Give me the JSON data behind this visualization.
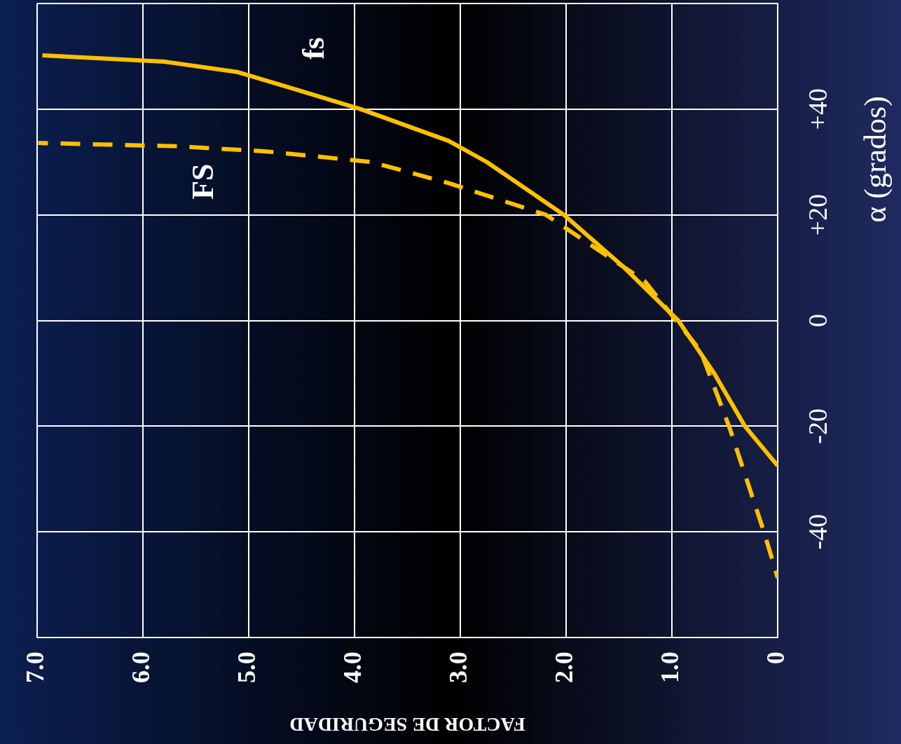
{
  "chart_data": {
    "type": "line",
    "xlabel": "FACTOR DE SEGURIDAD",
    "ylabel": "α (grados)",
    "xlim": [
      7,
      0
    ],
    "xticks": [
      0,
      {
        "value": 1,
        "label": "1.0"
      },
      {
        "value": 2,
        "label": "2.0"
      },
      {
        "value": 3,
        "label": "3.0"
      },
      {
        "value": 4,
        "label": "4.0"
      },
      {
        "value": 5,
        "label": "5.0"
      },
      {
        "value": 6,
        "label": "6.0"
      },
      {
        "value": 7,
        "label": "7.0"
      }
    ],
    "ylim": [
      -60,
      60
    ],
    "yticks": [
      {
        "value": -60,
        "label": null
      },
      -40,
      -20,
      0,
      {
        "value": 20,
        "label": "+20"
      },
      {
        "value": 40,
        "label": "+40"
      },
      {
        "value": 60,
        "label": null
      }
    ],
    "grid": true,
    "legend": false,
    "marker": "none",
    "series": [
      {
        "name": "fs",
        "color": "#ffc000",
        "line_style": "solid",
        "x": [
          0,
          0.31,
          0.6,
          0.94,
          1.45,
          2.02,
          2.75,
          3.11,
          3.94,
          4.6,
          5.1,
          5.8,
          6.95
        ],
        "values": [
          -27.5,
          -20,
          -10,
          0,
          10,
          20,
          30,
          34,
          40,
          44,
          47,
          49,
          50.2
        ]
      },
      {
        "name": "FS",
        "color": "#ffc000",
        "line_style": "dashed",
        "x": [
          0,
          0.13,
          0.46,
          0.73,
          0.96,
          1.26,
          2.19,
          3.11,
          3.84,
          4.83,
          5.7,
          6.99
        ],
        "values": [
          -48.7,
          -40,
          -20,
          -5.7,
          0,
          7.5,
          20,
          26,
          30,
          32,
          33,
          33.6
        ]
      }
    ]
  }
}
